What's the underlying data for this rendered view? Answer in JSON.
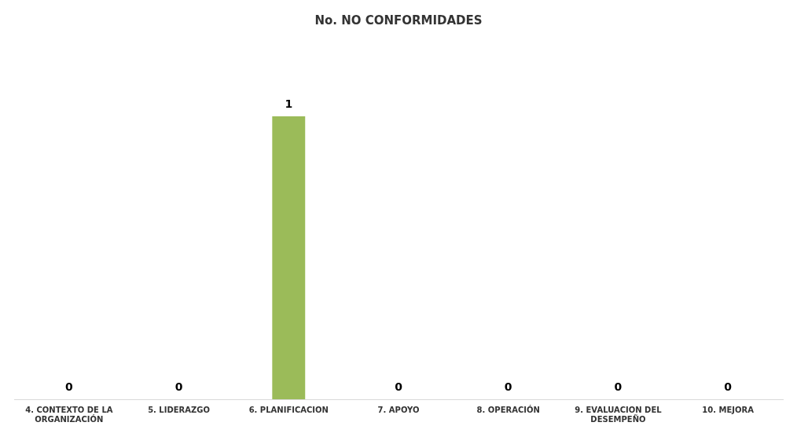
{
  "chart_data": {
    "type": "bar",
    "title": "No. NO CONFORMIDADES",
    "categories": [
      "4. CONTEXTO DE LA ORGANIZACIÓN",
      "5. LIDERAZGO",
      "6. PLANIFICACION",
      "7. APOYO",
      "8. OPERACIÓN",
      "9. EVALUACION DEL DESEMPEÑO",
      "10. MEJORA"
    ],
    "values": [
      0,
      0,
      1,
      0,
      0,
      0,
      0
    ],
    "color": "#9bbb59",
    "data_labels": true,
    "grid": false,
    "legend": false
  }
}
